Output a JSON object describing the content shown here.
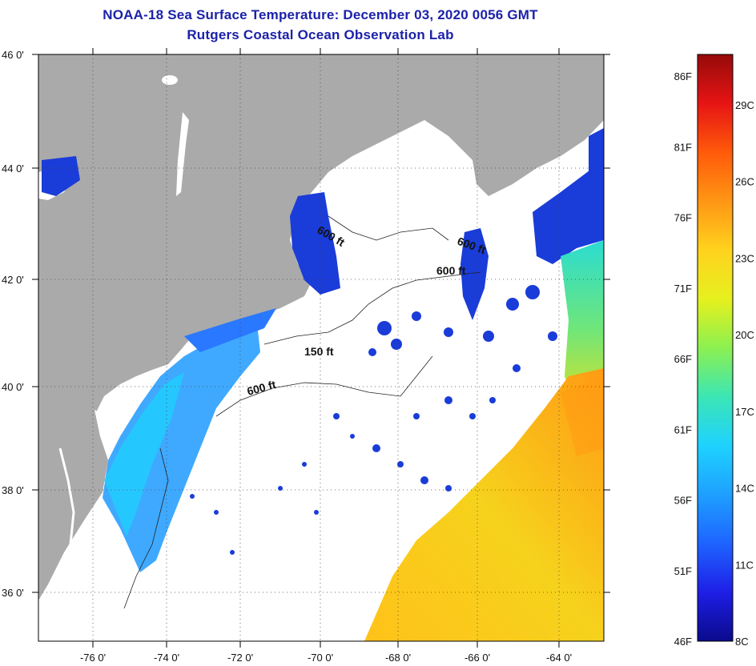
{
  "header": {
    "title": "NOAA-18 Sea Surface Temperature:  December 03, 2020 0056 GMT",
    "subtitle": "Rutgers Coastal Ocean Observation Lab"
  },
  "axes": {
    "lat_labels": [
      "46 0'",
      "44 0'",
      "42 0'",
      "40 0'",
      "38 0'",
      "36 0'"
    ],
    "lon_labels": [
      "-76 0'",
      "-74 0'",
      "-72 0'",
      "-70 0'",
      "-68 0'",
      "-66 0'",
      "-64 0'"
    ]
  },
  "contours": [
    {
      "label": "600 ft"
    },
    {
      "label": "600 ft"
    },
    {
      "label": "600 ft"
    },
    {
      "label": "150 ft"
    },
    {
      "label": "600 ft"
    }
  ],
  "colorbar": {
    "fahrenheit": [
      "86F",
      "81F",
      "76F",
      "71F",
      "66F",
      "61F",
      "56F",
      "51F",
      "46F"
    ],
    "celsius": [
      "29C",
      "26C",
      "23C",
      "20C",
      "17C",
      "14C",
      "11C",
      "8C"
    ],
    "stops": [
      "#0a0a8c",
      "#1e1ee6",
      "#1e64ff",
      "#1ea0ff",
      "#1ed2ff",
      "#3ce6b4",
      "#8cf050",
      "#e6f01e",
      "#ffd21e",
      "#ff9614",
      "#ff5a0a",
      "#e61414",
      "#960a0a"
    ]
  },
  "colors": {
    "land": "#aaaaaa",
    "no_data": "#ffffff",
    "title": "#1c22a8",
    "cold_water": "#1a3cd8",
    "shelf_water": "#2aa0ff",
    "warm_water": "#ffc21a"
  }
}
